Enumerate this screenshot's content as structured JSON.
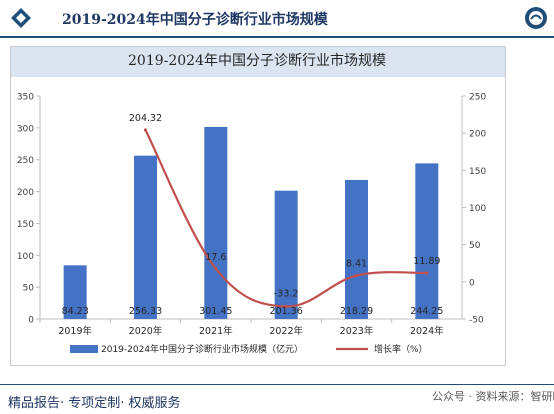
{
  "header": {
    "title": "2019-2024年中国分子诊断行业市场规模",
    "accent_color": "#1f4e79"
  },
  "footer": {
    "left_text": "精品报告· 专项定制· 权威服务",
    "right_text": "公众号 · 资料来源：智研瞻"
  },
  "chart_data": {
    "type": "bar",
    "title": "2019-2024年中国分子诊断行业市场规模",
    "categories": [
      "2019年",
      "2020年",
      "2021年",
      "2022年",
      "2023年",
      "2024年"
    ],
    "series": [
      {
        "name": "2019-2024年中国分子诊断行业市场规模（亿元）",
        "type": "bar",
        "axis": "left",
        "color": "#4472c4",
        "values": [
          84.23,
          256.33,
          301.45,
          201.36,
          218.29,
          244.25
        ],
        "labels": [
          "84.23",
          "256.33",
          "301.45",
          "201.36",
          "218.29",
          "244.25"
        ]
      },
      {
        "name": "增长率（%）",
        "type": "line",
        "axis": "right",
        "color": "#c0504d",
        "values": [
          null,
          204.32,
          17.6,
          -33.2,
          8.41,
          11.89
        ],
        "labels": [
          "",
          "204.32",
          "17.6",
          "-33.2",
          "8.41",
          "11.89"
        ]
      }
    ],
    "y_left": {
      "min": 0,
      "max": 350,
      "ticks": [
        0,
        50,
        100,
        150,
        200,
        250,
        300,
        350
      ]
    },
    "y_right": {
      "min": -50,
      "max": 250,
      "ticks": [
        -50,
        0,
        50,
        100,
        150,
        200,
        250
      ]
    },
    "grid": false,
    "legend_position": "bottom"
  }
}
